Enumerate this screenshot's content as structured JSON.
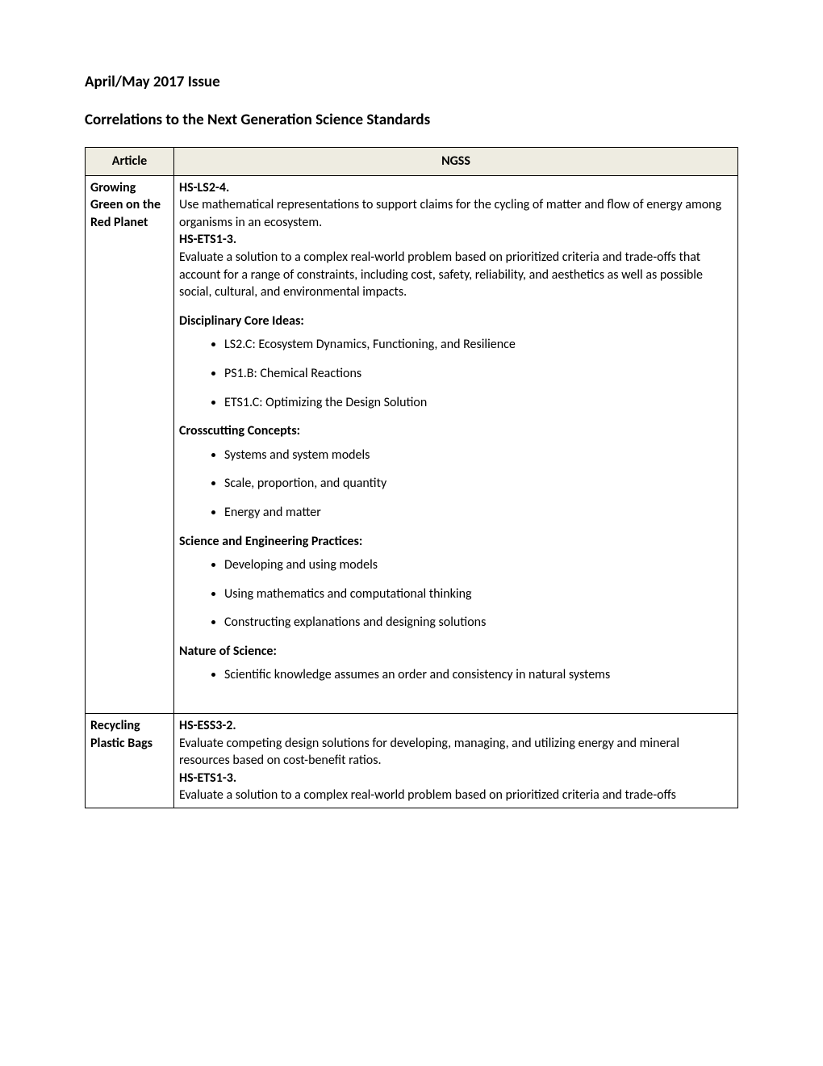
{
  "issue_title": "April/May 2017 Issue",
  "subtitle": "Correlations to the Next Generation Science Standards",
  "columns": {
    "article": "Article",
    "ngss": "NGSS"
  },
  "rows": [
    {
      "article": "Growing Green on the Red Planet",
      "standards": [
        {
          "code": "HS-LS2-4.",
          "desc": "Use mathematical representations to support claims for the cycling of matter and flow of energy among organisms in an ecosystem."
        },
        {
          "code": "HS-ETS1-3.",
          "desc": "Evaluate a solution to a complex real-world problem based on prioritized criteria and trade-offs that account for a range of constraints, including cost, safety, reliability, and aesthetics as well as possible social, cultural, and environmental impacts."
        }
      ],
      "sections": [
        {
          "label": "Disciplinary Core Ideas:",
          "items": [
            "LS2.C: Ecosystem Dynamics, Functioning, and Resilience",
            "PS1.B: Chemical Reactions",
            "ETS1.C: Optimizing the Design Solution"
          ]
        },
        {
          "label": "Crosscutting Concepts:",
          "items": [
            "Systems and system models",
            "Scale, proportion, and quantity",
            "Energy and matter"
          ]
        },
        {
          "label": "Science and Engineering Practices:",
          "items": [
            "Developing and using models",
            "Using mathematics and computational thinking",
            "Constructing explanations and designing solutions"
          ]
        },
        {
          "label": "Nature of Science:",
          "items": [
            "Scientific knowledge assumes an order and consistency in natural systems"
          ]
        }
      ]
    },
    {
      "article": "Recycling Plastic Bags",
      "standards": [
        {
          "code": "HS-ESS3-2.",
          "desc": "Evaluate competing design solutions for developing, managing, and utilizing energy and mineral resources based on cost-benefit ratios."
        },
        {
          "code": "HS-ETS1-3.",
          "desc": "Evaluate a solution to a complex real-world problem based on prioritized criteria and trade-offs"
        }
      ],
      "sections": []
    }
  ]
}
